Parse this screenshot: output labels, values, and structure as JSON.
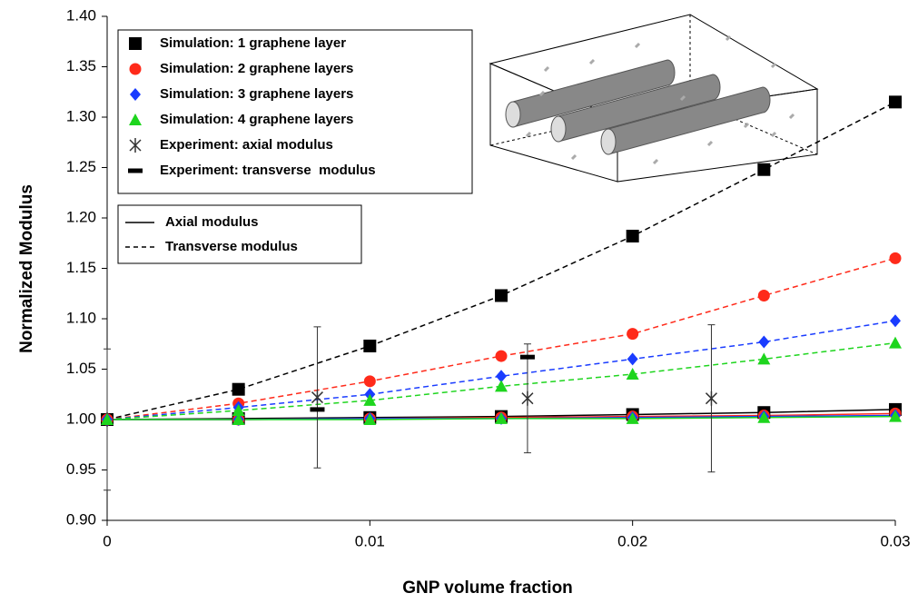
{
  "chart_data": {
    "type": "line",
    "x_label": "GNP volume fraction",
    "y_label": "Normalized Modulus",
    "x": [
      0,
      0.005,
      0.01,
      0.015,
      0.02,
      0.025,
      0.03
    ],
    "series": [
      {
        "name": "Simulation: 1 graphene layer",
        "color": "#000000",
        "marker": "square",
        "values": [
          1.0,
          1.03,
          1.073,
          1.123,
          1.182,
          1.248,
          1.315
        ],
        "axial_values": [
          1.0,
          1.001,
          1.002,
          1.003,
          1.005,
          1.007,
          1.01
        ]
      },
      {
        "name": "Simulation: 2 graphene layers",
        "color": "#ff2a1a",
        "marker": "circle",
        "values": [
          1.0,
          1.016,
          1.038,
          1.063,
          1.085,
          1.123,
          1.16
        ],
        "axial_values": [
          1.0,
          1.0,
          1.001,
          1.002,
          1.003,
          1.004,
          1.006
        ]
      },
      {
        "name": "Simulation: 3 graphene layers",
        "color": "#1a3cff",
        "marker": "diamond",
        "values": [
          1.0,
          1.012,
          1.025,
          1.043,
          1.06,
          1.077,
          1.098
        ],
        "axial_values": [
          1.0,
          1.0,
          1.001,
          1.001,
          1.002,
          1.003,
          1.004
        ]
      },
      {
        "name": "Simulation: 4 graphene layers",
        "color": "#1ed51e",
        "marker": "triangle",
        "values": [
          1.0,
          1.009,
          1.019,
          1.033,
          1.045,
          1.06,
          1.076
        ],
        "axial_values": [
          1.0,
          1.0,
          1.0,
          1.001,
          1.001,
          1.002,
          1.003
        ]
      }
    ],
    "experiments": [
      {
        "name": "Experiment: axial modulus",
        "color": "#333333",
        "marker": "asterisk",
        "x": [
          0,
          0.008,
          0.016,
          0.023
        ],
        "values": [
          1.0,
          1.022,
          1.021,
          1.021
        ],
        "errors": [
          0.07,
          0.07,
          0.054,
          0.073
        ]
      },
      {
        "name": "Experiment: transverse  modulus",
        "color": "#000000",
        "marker": "dash",
        "x": [
          0.008,
          0.016
        ],
        "values": [
          1.01,
          1.062
        ]
      }
    ],
    "line_legend": [
      {
        "name": "Axial modulus",
        "dashed": false
      },
      {
        "name": "Transverse modulus",
        "dashed": true
      }
    ],
    "xlim": [
      0,
      0.03
    ],
    "xticks": [
      0,
      0.01,
      0.02,
      0.03
    ],
    "ylim": [
      0.9,
      1.4
    ],
    "yticks": [
      {
        "value": 0.9,
        "label": "0.90"
      },
      {
        "value": 0.95,
        "label": "0.95"
      },
      {
        "value": 1.0,
        "label": "1.00"
      },
      {
        "value": 1.05,
        "label": "1.05"
      },
      {
        "value": 1.1,
        "label": "1.10"
      },
      {
        "value": 1.15,
        "label": "1.15"
      },
      {
        "value": 1.2,
        "label": "1.20"
      },
      {
        "value": 1.25,
        "label": "1.25"
      },
      {
        "value": 1.3,
        "label": "1.30"
      },
      {
        "value": 1.35,
        "label": "1.35"
      },
      {
        "value": 1.4,
        "label": "1.40"
      }
    ]
  }
}
